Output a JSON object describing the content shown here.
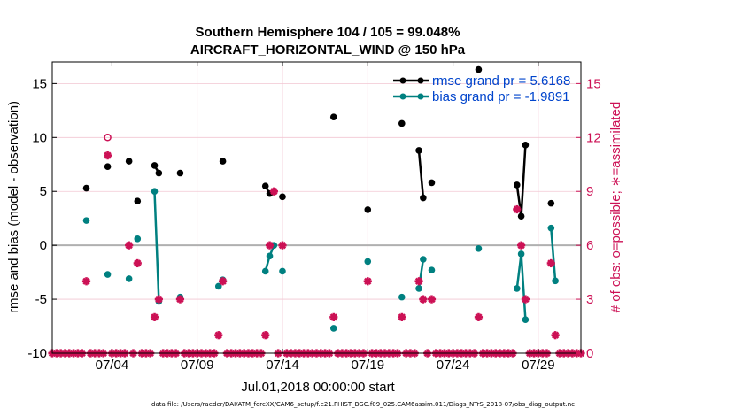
{
  "chart_data": {
    "type": "line",
    "title_line1": "Southern Hemisphere 104 / 105 = 99.048%",
    "title_line2": "AIRCRAFT_HORIZONTAL_WIND @ 150 hPa",
    "xlabel": "Jul.01,2018 00:00:00 start",
    "ylabel_left": "rmse and bias (model - observation)",
    "ylabel_right": "# of obs: o=possible; ∗=assimilated",
    "footer": "data file: /Users/raeder/DAI/ATM_forcXX/CAM6_setup/f.e21.FHIST_BGC.f09_025.CAM6assim.011/Diags_NTrS_2018-07/obs_diag_output.nc",
    "xlim": [
      0.5,
      31.5
    ],
    "ylim_left": [
      -10,
      17
    ],
    "ylim_right": [
      0,
      16.2
    ],
    "x_ticks": [
      4,
      9,
      14,
      19,
      24,
      29
    ],
    "x_tick_labels": [
      "07/04",
      "07/09",
      "07/14",
      "07/19",
      "07/24",
      "07/29"
    ],
    "y_ticks_left": [
      -10,
      -5,
      0,
      5,
      10,
      15
    ],
    "y_ticks_right": [
      0,
      3,
      6,
      9,
      12,
      15
    ],
    "legend": [
      {
        "name": "rmse grand pr = 5.6168",
        "color": "#000000"
      },
      {
        "name": "bias grand pr = -1.9891",
        "color": "#008080"
      }
    ],
    "series": [
      {
        "name": "rmse",
        "color": "#000000",
        "segments": [
          [
            [
              2.5,
              5.3
            ]
          ],
          [
            [
              3.75,
              7.3
            ]
          ],
          [
            [
              5.0,
              7.8
            ]
          ],
          [
            [
              5.5,
              4.1
            ]
          ],
          [
            [
              6.5,
              7.4
            ],
            [
              6.75,
              6.7
            ]
          ],
          [
            [
              8.0,
              6.7
            ]
          ],
          [
            [
              10.5,
              7.8
            ]
          ],
          [
            [
              13.0,
              5.5
            ],
            [
              13.25,
              4.8
            ]
          ],
          [
            [
              14.0,
              4.5
            ]
          ],
          [
            [
              17.0,
              11.9
            ]
          ],
          [
            [
              19.0,
              3.3
            ]
          ],
          [
            [
              21.0,
              11.3
            ]
          ],
          [
            [
              22.0,
              8.8
            ],
            [
              22.25,
              4.4
            ]
          ],
          [
            [
              22.75,
              5.8
            ]
          ],
          [
            [
              25.5,
              16.3
            ]
          ],
          [
            [
              27.75,
              5.6
            ],
            [
              28.0,
              2.7
            ],
            [
              28.25,
              9.3
            ]
          ],
          [
            [
              29.75,
              3.9
            ]
          ]
        ]
      },
      {
        "name": "bias",
        "color": "#008080",
        "segments": [
          [
            [
              2.5,
              2.3
            ]
          ],
          [
            [
              3.75,
              -2.7
            ]
          ],
          [
            [
              5.0,
              -3.1
            ]
          ],
          [
            [
              5.5,
              0.6
            ]
          ],
          [
            [
              6.5,
              5.0
            ],
            [
              6.75,
              -5.2
            ]
          ],
          [
            [
              8.0,
              -4.8
            ]
          ],
          [
            [
              10.25,
              -3.8
            ],
            [
              10.5,
              -3.2
            ]
          ],
          [
            [
              13.0,
              -2.4
            ],
            [
              13.25,
              -1.0
            ],
            [
              13.5,
              0.0
            ]
          ],
          [
            [
              14.0,
              -2.4
            ]
          ],
          [
            [
              17.0,
              -7.7
            ]
          ],
          [
            [
              19.0,
              -1.5
            ]
          ],
          [
            [
              21.0,
              -4.8
            ]
          ],
          [
            [
              22.0,
              -4.0
            ],
            [
              22.25,
              -1.3
            ]
          ],
          [
            [
              22.75,
              -2.3
            ]
          ],
          [
            [
              25.5,
              -0.3
            ]
          ],
          [
            [
              27.75,
              -4.0
            ],
            [
              28.0,
              -0.8
            ],
            [
              28.25,
              -6.9
            ]
          ],
          [
            [
              29.75,
              1.6
            ],
            [
              30.0,
              -3.3
            ]
          ]
        ]
      }
    ],
    "obs_possible": {
      "label": "possible",
      "color": "#cc1155",
      "points": [
        [
          3.75,
          12
        ]
      ]
    },
    "obs_assimilated": {
      "label": "assimilated",
      "color": "#cc1155",
      "baseline_x_start": 0.5,
      "baseline_x_end": 31.5,
      "baseline_step": 0.25,
      "points": [
        [
          2.5,
          4
        ],
        [
          3.75,
          11
        ],
        [
          5.0,
          6
        ],
        [
          5.5,
          5
        ],
        [
          6.5,
          2
        ],
        [
          6.75,
          3
        ],
        [
          8.0,
          3
        ],
        [
          10.25,
          1
        ],
        [
          10.5,
          4
        ],
        [
          13.0,
          1
        ],
        [
          13.25,
          6
        ],
        [
          13.5,
          9
        ],
        [
          14.0,
          6
        ],
        [
          17.0,
          2
        ],
        [
          19.0,
          4
        ],
        [
          21.0,
          2
        ],
        [
          22.0,
          4
        ],
        [
          22.25,
          3
        ],
        [
          22.75,
          3
        ],
        [
          25.5,
          2
        ],
        [
          27.75,
          8
        ],
        [
          28.0,
          6
        ],
        [
          28.25,
          3
        ],
        [
          29.75,
          5
        ],
        [
          30.0,
          1
        ]
      ]
    }
  }
}
